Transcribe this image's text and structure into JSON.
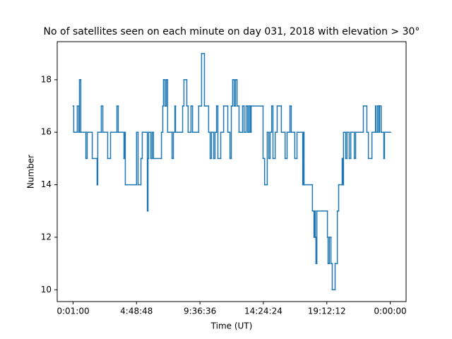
{
  "chart_data": {
    "type": "step",
    "title": "No of satellites seen on each minute on day 031, 2018 with elevation > 30°",
    "xlabel": "Time (UT)",
    "ylabel": "Number",
    "color": "#1f77b4",
    "x": [
      1,
      4,
      20,
      27,
      30,
      36,
      59,
      65,
      88,
      110,
      113,
      129,
      136,
      158,
      171,
      200,
      206,
      232,
      235,
      238,
      289,
      296,
      309,
      315,
      338,
      341,
      344,
      354,
      360,
      366,
      402,
      408,
      411,
      418,
      424,
      430,
      450,
      456,
      463,
      466,
      498,
      504,
      517,
      523,
      536,
      543,
      571,
      584,
      597,
      616,
      623,
      629,
      639,
      645,
      652,
      658,
      671,
      684,
      703,
      713,
      719,
      725,
      732,
      738,
      745,
      754,
      770,
      777,
      786,
      793,
      799,
      805,
      809,
      863,
      870,
      882,
      889,
      895,
      902,
      908,
      918,
      927,
      946,
      963,
      972,
      985,
      991,
      1007,
      1017,
      1043,
      1046,
      1049,
      1087,
      1094,
      1097,
      1100,
      1103,
      1107,
      1155,
      1158,
      1164,
      1171,
      1177,
      1190,
      1200,
      1206,
      1222,
      1225,
      1228,
      1238,
      1244,
      1254,
      1261,
      1277,
      1283,
      1318,
      1334,
      1341,
      1357,
      1373,
      1376,
      1383,
      1389,
      1392,
      1399,
      1411,
      1414,
      1440
    ],
    "values": [
      17,
      16,
      17,
      16,
      18,
      16,
      15,
      16,
      15,
      14,
      16,
      17,
      16,
      15,
      16,
      17,
      16,
      15,
      16,
      14,
      16,
      14,
      15,
      16,
      13,
      15,
      16,
      15,
      16,
      15,
      16,
      17,
      18,
      17,
      18,
      16,
      15,
      16,
      17,
      16,
      17,
      18,
      17,
      16,
      17,
      16,
      17,
      19,
      17,
      16,
      15,
      16,
      15,
      16,
      17,
      15,
      16,
      17,
      16,
      15,
      17,
      18,
      17,
      18,
      17,
      16,
      17,
      16,
      17,
      16,
      17,
      16,
      17,
      15,
      14,
      16,
      15,
      16,
      17,
      15,
      16,
      17,
      16,
      15,
      16,
      17,
      16,
      15,
      16,
      14,
      16,
      14,
      13,
      12,
      13,
      12,
      11,
      13,
      12,
      11,
      12,
      11,
      10,
      11,
      13,
      14,
      15,
      14,
      16,
      15,
      16,
      15,
      16,
      15,
      16,
      17,
      16,
      15,
      16,
      17,
      16,
      17,
      16,
      17,
      16,
      15,
      16,
      16
    ],
    "xlim": [
      -71,
      1512
    ],
    "xticks": [
      {
        "value": 1,
        "label": "0:01:00"
      },
      {
        "value": 288.8,
        "label": "4:48:48"
      },
      {
        "value": 576.6,
        "label": "9:36:36"
      },
      {
        "value": 864.4,
        "label": "14:24:24"
      },
      {
        "value": 1152.2,
        "label": "19:12:12"
      },
      {
        "value": 1440,
        "label": "0:00:00"
      }
    ],
    "ylim": [
      9.55,
      19.45
    ],
    "yticks": [
      10,
      12,
      14,
      16,
      18
    ]
  }
}
